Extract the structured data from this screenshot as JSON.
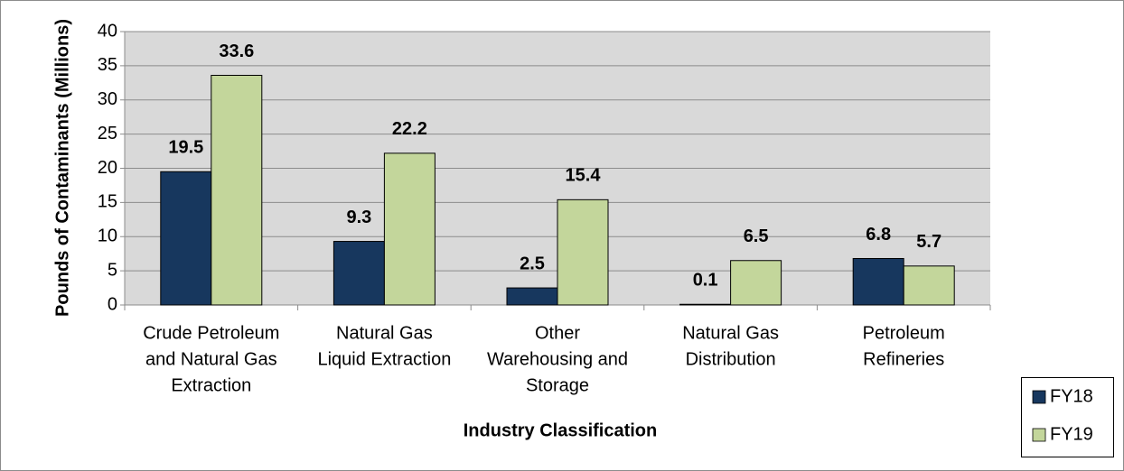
{
  "chart_data": {
    "type": "bar",
    "categories": [
      [
        "Crude Petroleum",
        "and Natural Gas",
        "Extraction"
      ],
      [
        "Natural Gas",
        "Liquid Extraction"
      ],
      [
        "Other",
        "Warehousing and",
        "Storage"
      ],
      [
        "Natural Gas",
        "Distribution"
      ],
      [
        "Petroleum",
        "Refineries"
      ]
    ],
    "series": [
      {
        "name": "FY18",
        "color": "#17375e",
        "values": [
          19.5,
          9.3,
          2.5,
          0.1,
          6.8
        ]
      },
      {
        "name": "FY19",
        "color": "#c3d69b",
        "values": [
          33.6,
          22.2,
          15.4,
          6.5,
          5.7
        ]
      }
    ],
    "x_label": "Industry Classification",
    "y_label": "Pounds of Contaminants (Millions)",
    "ylim": [
      0,
      40
    ],
    "yticks": [
      0,
      5,
      10,
      15,
      20,
      25,
      30,
      35,
      40
    ],
    "grid": true,
    "legend": "bottom-right"
  }
}
